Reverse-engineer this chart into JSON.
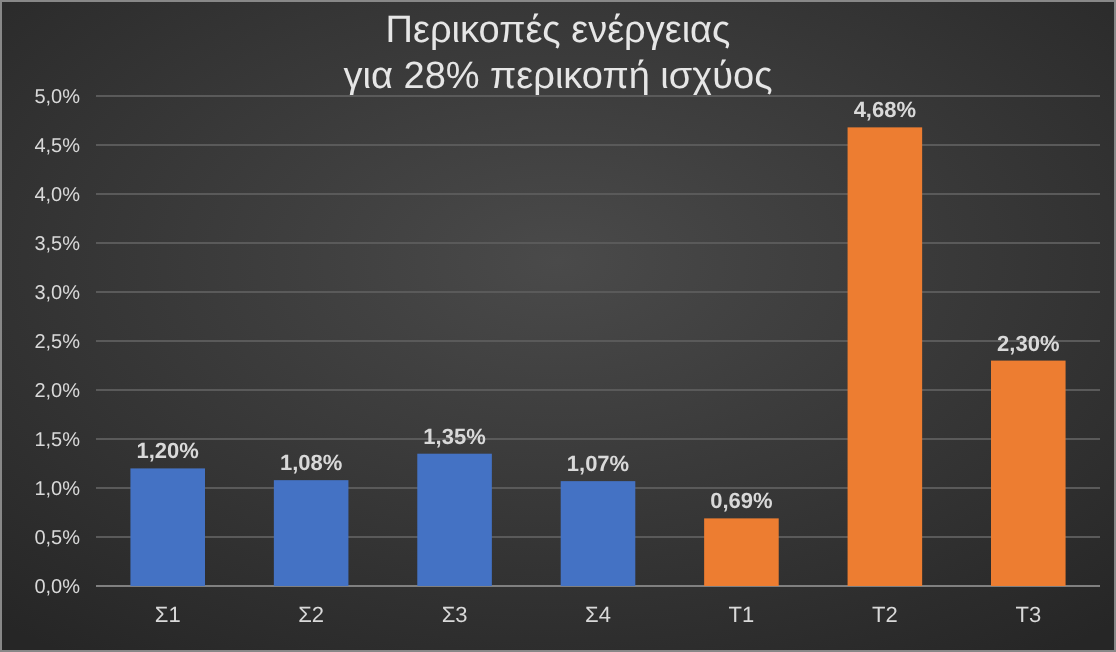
{
  "chart_data": {
    "type": "bar",
    "title": "Περικοπές ενέργειας\nγια 28% περικοπή ισχύος",
    "categories": [
      "Σ1",
      "Σ2",
      "Σ3",
      "Σ4",
      "Τ1",
      "Τ2",
      "Τ3"
    ],
    "values": [
      1.2,
      1.08,
      1.35,
      1.07,
      0.69,
      4.68,
      2.3
    ],
    "colors": [
      "#4472c4",
      "#4472c4",
      "#4472c4",
      "#4472c4",
      "#ed7d31",
      "#ed7d31",
      "#ed7d31"
    ],
    "value_labels": [
      "1,20%",
      "1,08%",
      "1,35%",
      "1,07%",
      "0,69%",
      "4,68%",
      "2,30%"
    ],
    "ylim": [
      0,
      5
    ],
    "yticks": [
      {
        "value": 0,
        "label": "0,0%"
      },
      {
        "value": 0.5,
        "label": "0,5%"
      },
      {
        "value": 1,
        "label": "1,0%"
      },
      {
        "value": 1.5,
        "label": "1,5%"
      },
      {
        "value": 2,
        "label": "2,0%"
      },
      {
        "value": 2.5,
        "label": "2,5%"
      },
      {
        "value": 3,
        "label": "3,0%"
      },
      {
        "value": 3.5,
        "label": "3,5%"
      },
      {
        "value": 4,
        "label": "4,0%"
      },
      {
        "value": 4.5,
        "label": "4,5%"
      },
      {
        "value": 5,
        "label": "5,0%"
      }
    ],
    "grid": "y"
  }
}
